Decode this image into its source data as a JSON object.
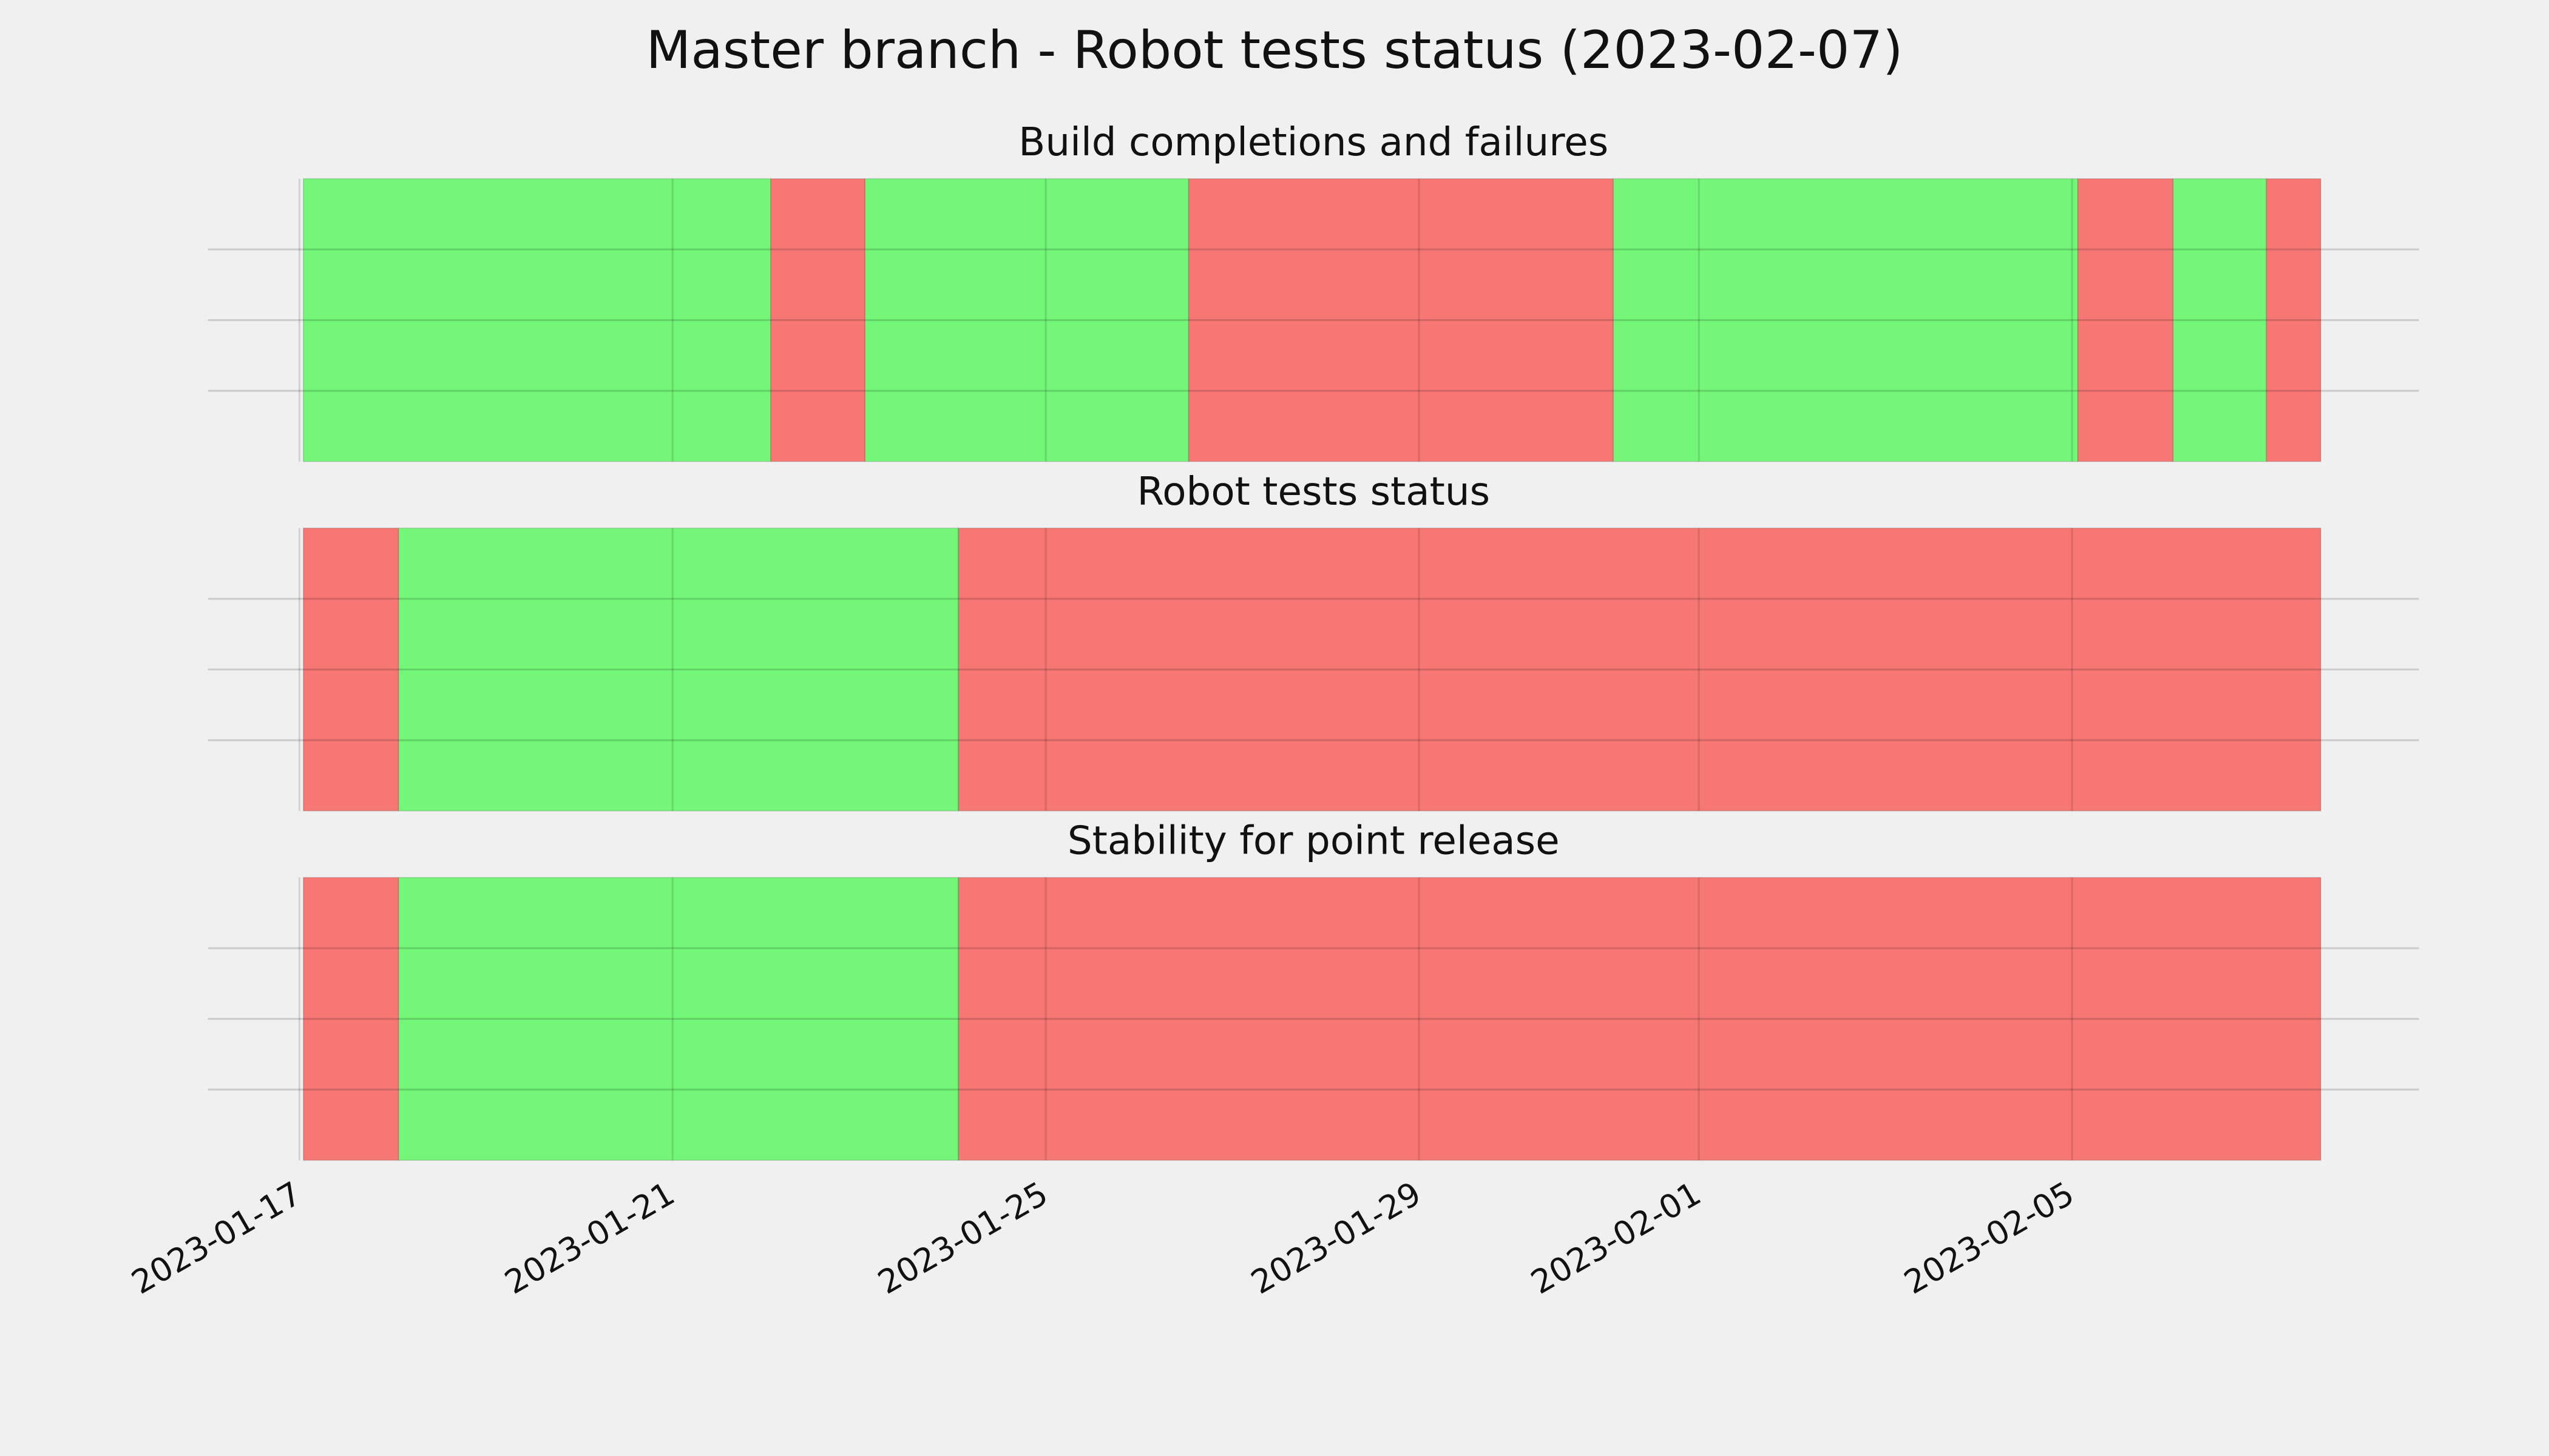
{
  "title": "Master branch - Robot tests status (2023-02-07)",
  "chart_data": [
    {
      "type": "timeline",
      "title": "Build completions and failures",
      "segments": [
        {
          "start": "2023-01-17T01:00",
          "end": "2023-01-22T01:15",
          "color": "#74f779"
        },
        {
          "start": "2023-01-22T01:15",
          "end": "2023-01-23T01:30",
          "color": "#f77775"
        },
        {
          "start": "2023-01-23T01:30",
          "end": "2023-01-26T12:45",
          "color": "#74f779"
        },
        {
          "start": "2023-01-26T12:45",
          "end": "2023-01-31T02:00",
          "color": "#f77775"
        },
        {
          "start": "2023-01-31T02:00",
          "end": "2023-02-05T01:30",
          "color": "#74f779"
        },
        {
          "start": "2023-02-05T01:30",
          "end": "2023-02-06T02:00",
          "color": "#f77775"
        },
        {
          "start": "2023-02-06T02:00",
          "end": "2023-02-07T02:00",
          "color": "#74f779"
        },
        {
          "start": "2023-02-07T02:00",
          "end": "2023-02-07T16:00",
          "color": "#f77775"
        }
      ],
      "xlim": [
        "2023-01-16T00:30",
        "2023-02-08T17:15"
      ],
      "xticks": [
        "2023-01-17",
        "2023-01-21",
        "2023-01-25",
        "2023-01-29",
        "2023-02-01",
        "2023-02-05"
      ],
      "ylim": [
        0,
        1
      ],
      "ygrid": [
        0.25,
        0.5,
        0.75
      ],
      "grid": true
    },
    {
      "type": "timeline",
      "title": "Robot tests status",
      "segments": [
        {
          "start": "2023-01-17T01:00",
          "end": "2023-01-18T01:30",
          "color": "#f77775"
        },
        {
          "start": "2023-01-18T01:30",
          "end": "2023-01-24T01:30",
          "color": "#74f779"
        },
        {
          "start": "2023-01-24T01:30",
          "end": "2023-02-07T16:00",
          "color": "#f77775"
        }
      ],
      "xlim": [
        "2023-01-16T00:30",
        "2023-02-08T17:15"
      ],
      "xticks": [
        "2023-01-17",
        "2023-01-21",
        "2023-01-25",
        "2023-01-29",
        "2023-02-01",
        "2023-02-05"
      ],
      "ylim": [
        0,
        1
      ],
      "ygrid": [
        0.25,
        0.5,
        0.75
      ],
      "grid": true
    },
    {
      "type": "timeline",
      "title": "Stability for point release",
      "segments": [
        {
          "start": "2023-01-17T01:00",
          "end": "2023-01-18T01:30",
          "color": "#f77775"
        },
        {
          "start": "2023-01-18T01:30",
          "end": "2023-01-24T01:30",
          "color": "#74f779"
        },
        {
          "start": "2023-01-24T01:30",
          "end": "2023-02-07T16:00",
          "color": "#f77775"
        }
      ],
      "xlim": [
        "2023-01-16T00:30",
        "2023-02-08T17:15"
      ],
      "xticks": [
        "2023-01-17",
        "2023-01-21",
        "2023-01-25",
        "2023-01-29",
        "2023-02-01",
        "2023-02-05"
      ],
      "ylim": [
        0,
        1
      ],
      "ygrid": [
        0.25,
        0.5,
        0.75
      ],
      "grid": true
    }
  ]
}
